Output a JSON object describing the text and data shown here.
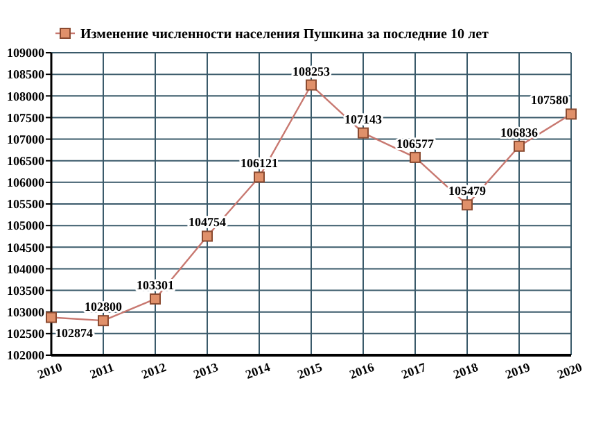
{
  "chart_data": {
    "type": "line",
    "categories": [
      "2010",
      "2011",
      "2012",
      "2013",
      "2014",
      "2015",
      "2016",
      "2017",
      "2018",
      "2019",
      "2020"
    ],
    "series": [
      {
        "name": "Изменение численности населения Пушкина за последние 10 лет",
        "color": "#c87870",
        "values": [
          102874,
          102800,
          103301,
          104754,
          106121,
          108253,
          107143,
          106577,
          105479,
          106836,
          107580
        ]
      }
    ],
    "ylim": [
      102000,
      109000
    ],
    "yticks": [
      102000,
      102500,
      103000,
      103500,
      104000,
      104500,
      105000,
      105500,
      106000,
      106500,
      107000,
      107500,
      108000,
      108500,
      109000
    ],
    "grid": true,
    "legend": "top",
    "marker": "square",
    "data_labels": true
  }
}
